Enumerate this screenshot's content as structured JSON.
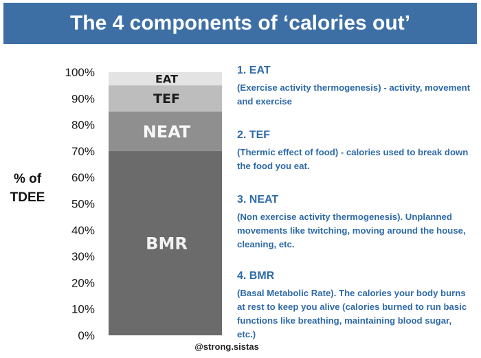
{
  "header": {
    "title": "The 4 components of ‘calories out’"
  },
  "chart_data": {
    "type": "bar",
    "stacked": true,
    "ylabel": [
      "% of",
      "TDEE"
    ],
    "ylim": [
      0,
      100
    ],
    "yticks": [
      0,
      10,
      20,
      30,
      40,
      50,
      60,
      70,
      80,
      90,
      100
    ],
    "ytick_labels": [
      "0%",
      "10%",
      "20%",
      "30%",
      "40%",
      "50%",
      "60%",
      "70%",
      "80%",
      "90%",
      "100%"
    ],
    "segments": [
      {
        "label": "BMR",
        "start": 0,
        "end": 70,
        "color": "#6b6b6b",
        "label_color": "#f2f2f2"
      },
      {
        "label": "NEAT",
        "start": 70,
        "end": 85,
        "color": "#8f8f8f",
        "label_color": "#f7f7f7"
      },
      {
        "label": "TEF",
        "start": 85,
        "end": 95,
        "color": "#bdbdbd",
        "label_color": "#1c1c1c"
      },
      {
        "label": "EAT",
        "start": 95,
        "end": 100,
        "color": "#e3e3e3",
        "label_color": "#1c1c1c"
      }
    ]
  },
  "descriptions": [
    {
      "heading": "1. EAT",
      "body": "(Exercise activity thermogenesis) - activity, movement and exercise"
    },
    {
      "heading": "2. TEF",
      "body": "(Thermic effect of food) - calories used to break down the food you eat."
    },
    {
      "heading": "3. NEAT",
      "body": "(Non exercise activity thermogenesis). Unplanned movements like twitching, moving around the house, cleaning, etc."
    },
    {
      "heading": "4. BMR",
      "body": "(Basal Metabolic Rate). The calories your body burns at rest to keep you alive (calories burned to run basic functions like breathing, maintaining blood sugar, etc.)"
    }
  ],
  "credit": "@strong.sistas"
}
